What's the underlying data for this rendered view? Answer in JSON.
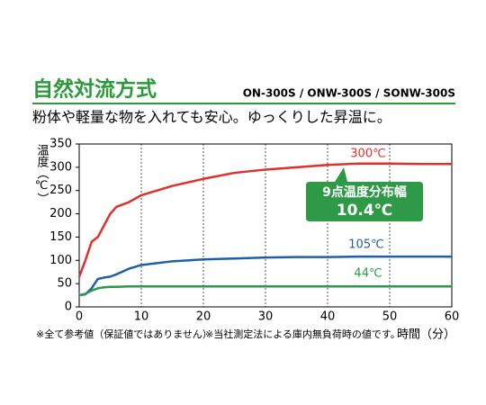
{
  "header": {
    "title": "自然対流方式",
    "models": "ON-300S / ONW-300S / SONW-300S",
    "subtitle": "粉体や軽量な物を入れても安心。ゆっくりした昇温に。"
  },
  "notes": [
    "※全て参考値（保証値ではありません）",
    "※当社測定法による庫内無負荷時の値です。"
  ],
  "chart_data": {
    "type": "line",
    "y_label": "温度（℃）",
    "x_label": "時間（分）",
    "x": [
      0,
      1,
      2,
      3,
      4,
      5,
      6,
      8,
      10,
      15,
      20,
      25,
      30,
      35,
      40,
      45,
      50,
      55,
      60
    ],
    "series": [
      {
        "name": "300℃",
        "color": "#e0302a",
        "values": [
          65,
          100,
          140,
          150,
          175,
          200,
          215,
          225,
          240,
          260,
          275,
          288,
          295,
          300,
          305,
          308,
          308,
          307,
          307
        ]
      },
      {
        "name": "105℃",
        "color": "#1f5fa8",
        "values": [
          25,
          27,
          40,
          60,
          63,
          65,
          70,
          82,
          90,
          98,
          102,
          104,
          106,
          107,
          107,
          108,
          108,
          108,
          108
        ]
      },
      {
        "name": "44℃",
        "color": "#2a9a4a",
        "values": [
          25,
          28,
          35,
          40,
          42,
          43,
          43,
          44,
          44,
          44,
          44,
          44,
          44,
          44,
          44,
          44,
          44,
          44,
          44
        ]
      }
    ],
    "callout": [
      "9点温度分布幅",
      "10.4℃"
    ],
    "xlim": [
      0,
      60
    ],
    "xticks": [
      0,
      10,
      20,
      30,
      40,
      50,
      60
    ],
    "ylim": [
      0,
      350
    ],
    "yticks": [
      0,
      50,
      100,
      150,
      200,
      250,
      300,
      350
    ],
    "grid": "x"
  }
}
